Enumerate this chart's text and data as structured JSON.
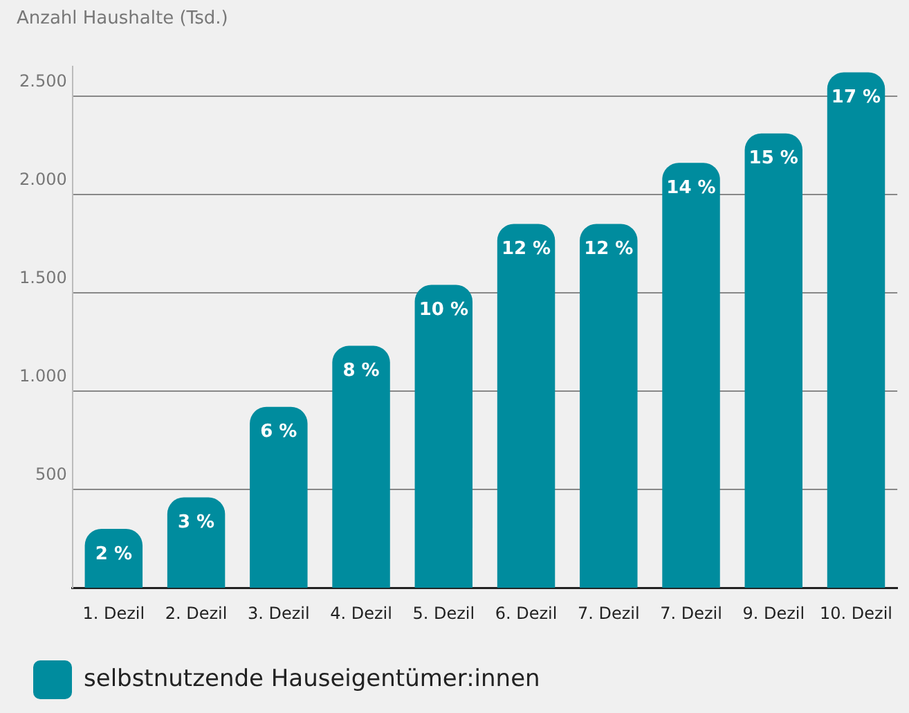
{
  "chart_data": {
    "type": "bar",
    "ylabel": "Anzahl Haushalte (Tsd.)",
    "categories": [
      "1. Dezil",
      "2. Dezil",
      "3. Dezil",
      "4. Dezil",
      "5. Dezil",
      "6. Dezil",
      "7. Dezil",
      "7. Dezil",
      "9. Dezil",
      "10. Dezil"
    ],
    "series": [
      {
        "name": "selbstnutzende Hauseigentümer:innen",
        "color": "#008c9e",
        "values": [
          300,
          460,
          920,
          1230,
          1540,
          1850,
          1850,
          2160,
          2310,
          2620
        ]
      }
    ],
    "annotations": [
      {
        "text": "2 %",
        "x": "1. Dezil",
        "y": 300
      },
      {
        "text": "3 %",
        "x": "2. Dezil",
        "y": 460
      },
      {
        "text": "6 %",
        "x": "3. Dezil",
        "y": 920
      },
      {
        "text": "8 %",
        "x": "4. Dezil",
        "y": 1230
      },
      {
        "text": "10 %",
        "x": "5. Dezil",
        "y": 1540
      },
      {
        "text": "12 %",
        "x": "6. Dezil",
        "y": 1850
      },
      {
        "text": "12 %",
        "x": "7. Dezil",
        "y": 1850
      },
      "14 %",
      {
        "text": "15 %",
        "x": "9. Dezil",
        "y": 2310
      },
      {
        "text": "17 %",
        "x": "10. Dezil",
        "y": 2620
      }
    ],
    "ylim": [
      0,
      2650
    ],
    "yticks": [
      {
        "value": 500,
        "label": "500"
      },
      {
        "value": 1000,
        "label": "1.000"
      },
      {
        "value": 1500,
        "label": "1.500"
      },
      {
        "value": 2000,
        "label": "2.000"
      },
      {
        "value": 2500,
        "label": "2.500"
      }
    ],
    "grid": "y",
    "legend": "bottom left"
  }
}
